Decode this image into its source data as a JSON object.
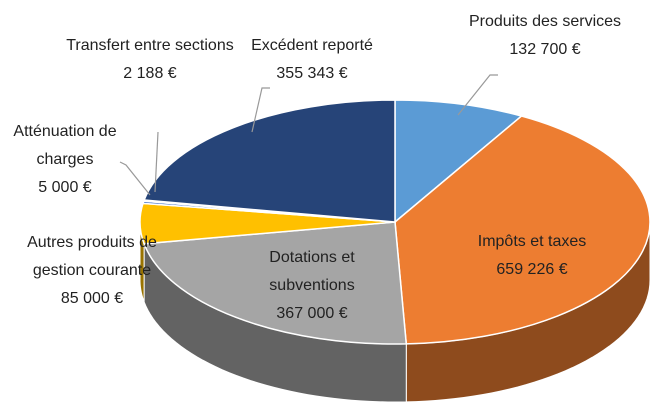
{
  "chart_data": {
    "type": "pie",
    "categories": [
      "Produits des services",
      "Impôts et taxes",
      "Dotations et subventions",
      "Autres produits de gestion courante",
      "Atténuation de charges",
      "Transfert entre sections",
      "Excédent reporté"
    ],
    "values": [
      132700,
      659226,
      367000,
      85000,
      5000,
      2188,
      355343
    ],
    "value_labels": [
      "132 700 €",
      "659 226 €",
      "367 000 €",
      "85 000 €",
      "5 000 €",
      "2 188 €",
      "355 343 €"
    ],
    "colors": [
      "#5b9bd5",
      "#ed7d31",
      "#a5a5a5",
      "#ffc000",
      "#4472c4",
      "#70ad47",
      "#264478"
    ]
  }
}
